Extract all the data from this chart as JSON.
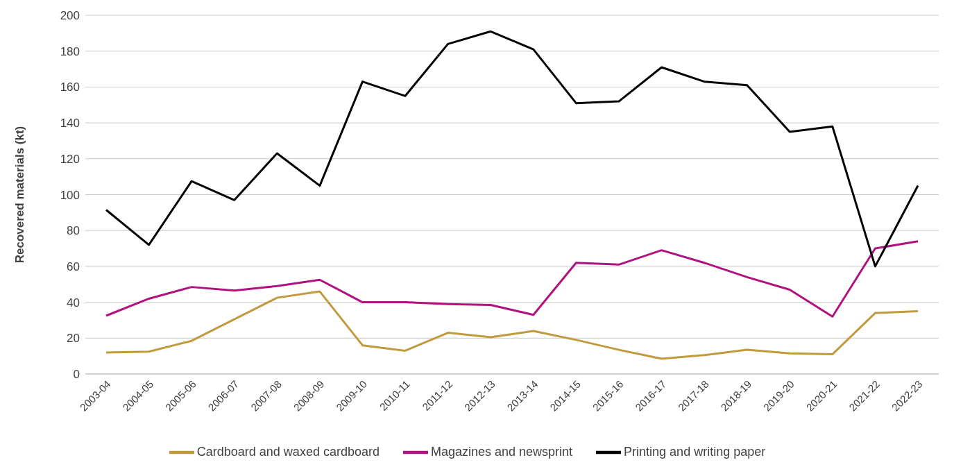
{
  "chart_data": {
    "type": "line",
    "ylabel": "Recovered materials (kt)",
    "categories": [
      "2003-04",
      "2004-05",
      "2005-06",
      "2006-07",
      "2007-08",
      "2008-09",
      "2009-10",
      "2010-11",
      "2011-12",
      "2012-13",
      "2013-14",
      "2014-15",
      "2015-16",
      "2016-17",
      "2017-18",
      "2018-19",
      "2019-20",
      "2020-21",
      "2021-22",
      "2022-23"
    ],
    "series": [
      {
        "name": "Cardboard and waxed cardboard",
        "color": "#c09a3c",
        "values": [
          12,
          12.5,
          18.5,
          30.5,
          42.5,
          46,
          16,
          13,
          23,
          20.5,
          24,
          19,
          13.5,
          8.5,
          10.5,
          13.5,
          11.5,
          11,
          34,
          35
        ]
      },
      {
        "name": "Magazines and newsprint",
        "color": "#b0127f",
        "values": [
          32.5,
          42,
          48.5,
          46.5,
          49,
          52.5,
          40,
          40,
          39,
          38.5,
          33,
          62,
          61,
          69,
          62,
          54,
          47,
          32,
          70,
          74
        ]
      },
      {
        "name": "Printing and writing paper",
        "color": "#000000",
        "values": [
          91.5,
          72,
          107.5,
          97,
          123,
          105,
          163,
          155,
          184,
          191,
          181,
          151,
          152,
          171,
          163,
          161,
          135,
          138,
          60,
          105
        ]
      }
    ],
    "ylim": [
      0,
      200
    ],
    "yticks": [
      0,
      20,
      40,
      60,
      80,
      100,
      120,
      140,
      160,
      180,
      200
    ],
    "grid": "y",
    "legend": "bottom",
    "line_style": "solid"
  }
}
